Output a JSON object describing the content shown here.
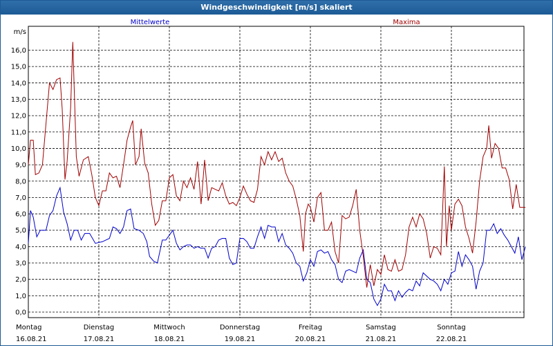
{
  "window": {
    "title": "Windgeschwindigkeit [m/s] skaliert"
  },
  "chart_data": {
    "type": "line",
    "ylabel": "m/s",
    "ylim": [
      0,
      17
    ],
    "yticks": [
      "0,0",
      "1,0",
      "2,0",
      "3,0",
      "4,0",
      "5,0",
      "6,0",
      "7,0",
      "8,0",
      "9,0",
      "10,0",
      "11,0",
      "12,0",
      "13,0",
      "14,0",
      "15,0",
      "16,0"
    ],
    "xlim": [
      0,
      7.05
    ],
    "days": [
      {
        "name": "Montag",
        "date": "16.08.21"
      },
      {
        "name": "Dienstag",
        "date": "17.08.21"
      },
      {
        "name": "Mittwoch",
        "date": "18.08.21"
      },
      {
        "name": "Donnerstag",
        "date": "19.08.21"
      },
      {
        "name": "Freitag",
        "date": "20.08.21"
      },
      {
        "name": "Samstag",
        "date": "21.08.21"
      },
      {
        "name": "Sonntag",
        "date": "22.08.21"
      }
    ],
    "grid": true,
    "series": [
      {
        "name": "Mittelwerte",
        "color": "#0000cc",
        "points": [
          [
            0.0,
            4.2
          ],
          [
            0.03,
            6.2
          ],
          [
            0.07,
            5.8
          ],
          [
            0.12,
            4.6
          ],
          [
            0.17,
            5.0
          ],
          [
            0.25,
            5.0
          ],
          [
            0.3,
            5.9
          ],
          [
            0.35,
            6.2
          ],
          [
            0.4,
            7.1
          ],
          [
            0.45,
            7.6
          ],
          [
            0.5,
            6.1
          ],
          [
            0.55,
            5.4
          ],
          [
            0.6,
            4.4
          ],
          [
            0.65,
            5.0
          ],
          [
            0.7,
            5.0
          ],
          [
            0.75,
            4.4
          ],
          [
            0.8,
            4.8
          ],
          [
            0.87,
            4.8
          ],
          [
            0.95,
            4.2
          ],
          [
            1.05,
            4.3
          ],
          [
            1.15,
            4.5
          ],
          [
            1.2,
            5.2
          ],
          [
            1.25,
            5.1
          ],
          [
            1.3,
            4.8
          ],
          [
            1.35,
            5.2
          ],
          [
            1.4,
            6.2
          ],
          [
            1.45,
            6.3
          ],
          [
            1.5,
            5.1
          ],
          [
            1.57,
            5.0
          ],
          [
            1.63,
            4.8
          ],
          [
            1.68,
            4.3
          ],
          [
            1.72,
            3.4
          ],
          [
            1.78,
            3.1
          ],
          [
            1.83,
            3.0
          ],
          [
            1.9,
            4.4
          ],
          [
            1.95,
            4.4
          ],
          [
            2.0,
            4.7
          ],
          [
            2.05,
            5.0
          ],
          [
            2.1,
            4.2
          ],
          [
            2.15,
            3.8
          ],
          [
            2.2,
            4.0
          ],
          [
            2.25,
            4.1
          ],
          [
            2.3,
            4.1
          ],
          [
            2.35,
            3.9
          ],
          [
            2.4,
            4.0
          ],
          [
            2.45,
            3.9
          ],
          [
            2.5,
            3.9
          ],
          [
            2.55,
            3.3
          ],
          [
            2.6,
            3.9
          ],
          [
            2.65,
            4.0
          ],
          [
            2.7,
            4.4
          ],
          [
            2.75,
            4.5
          ],
          [
            2.8,
            4.5
          ],
          [
            2.85,
            3.3
          ],
          [
            2.9,
            2.9
          ],
          [
            2.95,
            3.0
          ],
          [
            3.0,
            4.5
          ],
          [
            3.05,
            4.5
          ],
          [
            3.1,
            4.3
          ],
          [
            3.15,
            3.9
          ],
          [
            3.2,
            3.9
          ],
          [
            3.25,
            4.6
          ],
          [
            3.3,
            5.2
          ],
          [
            3.35,
            4.5
          ],
          [
            3.4,
            5.3
          ],
          [
            3.45,
            5.2
          ],
          [
            3.5,
            5.2
          ],
          [
            3.55,
            4.3
          ],
          [
            3.6,
            4.8
          ],
          [
            3.65,
            4.1
          ],
          [
            3.7,
            3.9
          ],
          [
            3.75,
            3.6
          ],
          [
            3.8,
            3.0
          ],
          [
            3.85,
            2.8
          ],
          [
            3.9,
            1.9
          ],
          [
            3.95,
            2.4
          ],
          [
            4.0,
            3.2
          ],
          [
            4.05,
            2.8
          ],
          [
            4.1,
            3.7
          ],
          [
            4.15,
            3.8
          ],
          [
            4.2,
            3.6
          ],
          [
            4.25,
            3.7
          ],
          [
            4.3,
            3.2
          ],
          [
            4.35,
            2.9
          ],
          [
            4.4,
            2.0
          ],
          [
            4.45,
            1.8
          ],
          [
            4.5,
            2.5
          ],
          [
            4.55,
            2.6
          ],
          [
            4.6,
            2.5
          ],
          [
            4.65,
            2.4
          ],
          [
            4.7,
            3.3
          ],
          [
            4.75,
            3.8
          ],
          [
            4.8,
            2.0
          ],
          [
            4.85,
            1.8
          ],
          [
            4.9,
            0.8
          ],
          [
            4.95,
            0.4
          ],
          [
            5.0,
            0.8
          ],
          [
            5.05,
            1.7
          ],
          [
            5.1,
            1.3
          ],
          [
            5.15,
            1.3
          ],
          [
            5.2,
            0.7
          ],
          [
            5.25,
            1.3
          ],
          [
            5.3,
            0.9
          ],
          [
            5.35,
            1.2
          ],
          [
            5.4,
            1.4
          ],
          [
            5.45,
            1.3
          ],
          [
            5.5,
            1.9
          ],
          [
            5.55,
            1.6
          ],
          [
            5.6,
            2.4
          ],
          [
            5.65,
            2.2
          ],
          [
            5.7,
            2.0
          ],
          [
            5.75,
            1.9
          ],
          [
            5.8,
            1.7
          ],
          [
            5.85,
            1.3
          ],
          [
            5.9,
            2.0
          ],
          [
            5.95,
            1.7
          ],
          [
            6.0,
            2.4
          ],
          [
            6.05,
            2.5
          ],
          [
            6.1,
            3.7
          ],
          [
            6.15,
            2.8
          ],
          [
            6.2,
            3.5
          ],
          [
            6.25,
            3.2
          ],
          [
            6.3,
            2.8
          ],
          [
            6.35,
            1.4
          ],
          [
            6.4,
            2.5
          ],
          [
            6.45,
            3.0
          ],
          [
            6.5,
            5.0
          ],
          [
            6.55,
            5.0
          ],
          [
            6.6,
            5.4
          ],
          [
            6.65,
            4.8
          ],
          [
            6.7,
            5.1
          ],
          [
            6.75,
            4.7
          ],
          [
            6.8,
            4.4
          ],
          [
            6.85,
            4.0
          ],
          [
            6.9,
            3.6
          ],
          [
            6.95,
            4.6
          ],
          [
            7.0,
            3.2
          ],
          [
            7.05,
            4.0
          ]
        ]
      },
      {
        "name": "Maxima",
        "color": "#a00000",
        "points": [
          [
            0.0,
            9.0
          ],
          [
            0.03,
            10.5
          ],
          [
            0.07,
            10.5
          ],
          [
            0.1,
            8.4
          ],
          [
            0.15,
            8.5
          ],
          [
            0.2,
            9.0
          ],
          [
            0.25,
            11.5
          ],
          [
            0.3,
            14.0
          ],
          [
            0.35,
            13.6
          ],
          [
            0.4,
            14.2
          ],
          [
            0.45,
            14.3
          ],
          [
            0.48,
            12.4
          ],
          [
            0.52,
            8.1
          ],
          [
            0.55,
            9.2
          ],
          [
            0.6,
            12.5
          ],
          [
            0.63,
            16.5
          ],
          [
            0.68,
            9.5
          ],
          [
            0.72,
            8.3
          ],
          [
            0.78,
            9.3
          ],
          [
            0.85,
            9.5
          ],
          [
            0.9,
            8.4
          ],
          [
            0.95,
            7.0
          ],
          [
            1.0,
            6.5
          ],
          [
            1.05,
            7.4
          ],
          [
            1.1,
            7.4
          ],
          [
            1.15,
            8.5
          ],
          [
            1.2,
            8.2
          ],
          [
            1.25,
            8.3
          ],
          [
            1.3,
            7.6
          ],
          [
            1.35,
            9.0
          ],
          [
            1.4,
            10.5
          ],
          [
            1.45,
            11.3
          ],
          [
            1.48,
            11.7
          ],
          [
            1.52,
            9.0
          ],
          [
            1.57,
            9.5
          ],
          [
            1.6,
            11.2
          ],
          [
            1.65,
            9.1
          ],
          [
            1.7,
            8.5
          ],
          [
            1.75,
            6.6
          ],
          [
            1.8,
            5.3
          ],
          [
            1.85,
            5.6
          ],
          [
            1.9,
            6.8
          ],
          [
            1.95,
            6.8
          ],
          [
            2.0,
            8.2
          ],
          [
            2.05,
            8.4
          ],
          [
            2.1,
            7.1
          ],
          [
            2.15,
            6.8
          ],
          [
            2.2,
            8.0
          ],
          [
            2.25,
            7.6
          ],
          [
            2.3,
            8.2
          ],
          [
            2.35,
            7.5
          ],
          [
            2.4,
            9.2
          ],
          [
            2.45,
            6.6
          ],
          [
            2.5,
            9.3
          ],
          [
            2.55,
            6.8
          ],
          [
            2.6,
            7.6
          ],
          [
            2.65,
            7.5
          ],
          [
            2.7,
            7.4
          ],
          [
            2.75,
            7.9
          ],
          [
            2.8,
            7.1
          ],
          [
            2.85,
            6.6
          ],
          [
            2.9,
            6.7
          ],
          [
            2.95,
            6.5
          ],
          [
            3.0,
            7.0
          ],
          [
            3.05,
            7.7
          ],
          [
            3.1,
            7.2
          ],
          [
            3.15,
            6.8
          ],
          [
            3.2,
            6.7
          ],
          [
            3.25,
            7.5
          ],
          [
            3.3,
            9.5
          ],
          [
            3.35,
            9.0
          ],
          [
            3.4,
            9.8
          ],
          [
            3.45,
            9.3
          ],
          [
            3.5,
            9.8
          ],
          [
            3.55,
            9.2
          ],
          [
            3.6,
            9.4
          ],
          [
            3.65,
            8.5
          ],
          [
            3.7,
            8.0
          ],
          [
            3.75,
            7.7
          ],
          [
            3.8,
            6.9
          ],
          [
            3.85,
            5.9
          ],
          [
            3.9,
            3.7
          ],
          [
            3.93,
            6.0
          ],
          [
            3.97,
            6.6
          ],
          [
            4.0,
            6.4
          ],
          [
            4.05,
            5.5
          ],
          [
            4.1,
            7.0
          ],
          [
            4.15,
            7.3
          ],
          [
            4.2,
            5.0
          ],
          [
            4.25,
            5.0
          ],
          [
            4.3,
            5.5
          ],
          [
            4.35,
            3.7
          ],
          [
            4.4,
            3.0
          ],
          [
            4.45,
            5.9
          ],
          [
            4.5,
            5.7
          ],
          [
            4.55,
            5.8
          ],
          [
            4.6,
            6.5
          ],
          [
            4.65,
            7.5
          ],
          [
            4.7,
            5.0
          ],
          [
            4.75,
            3.4
          ],
          [
            4.8,
            1.5
          ],
          [
            4.85,
            2.9
          ],
          [
            4.9,
            1.6
          ],
          [
            4.95,
            2.6
          ],
          [
            5.0,
            2.3
          ],
          [
            5.05,
            3.5
          ],
          [
            5.1,
            2.6
          ],
          [
            5.15,
            2.5
          ],
          [
            5.2,
            3.2
          ],
          [
            5.25,
            2.5
          ],
          [
            5.3,
            2.6
          ],
          [
            5.35,
            3.5
          ],
          [
            5.4,
            5.2
          ],
          [
            5.45,
            5.8
          ],
          [
            5.5,
            5.2
          ],
          [
            5.55,
            6.0
          ],
          [
            5.6,
            5.7
          ],
          [
            5.65,
            4.8
          ],
          [
            5.7,
            3.3
          ],
          [
            5.75,
            4.0
          ],
          [
            5.8,
            3.9
          ],
          [
            5.85,
            3.5
          ],
          [
            5.9,
            8.9
          ],
          [
            5.93,
            4.0
          ],
          [
            5.97,
            6.5
          ],
          [
            6.0,
            5.0
          ],
          [
            6.05,
            6.6
          ],
          [
            6.1,
            6.9
          ],
          [
            6.15,
            6.5
          ],
          [
            6.2,
            5.2
          ],
          [
            6.25,
            4.5
          ],
          [
            6.3,
            3.6
          ],
          [
            6.35,
            5.5
          ],
          [
            6.4,
            8.0
          ],
          [
            6.45,
            9.5
          ],
          [
            6.5,
            10.0
          ],
          [
            6.53,
            11.4
          ],
          [
            6.57,
            9.4
          ],
          [
            6.62,
            10.3
          ],
          [
            6.67,
            10.0
          ],
          [
            6.72,
            8.8
          ],
          [
            6.77,
            8.8
          ],
          [
            6.82,
            8.1
          ],
          [
            6.87,
            6.3
          ],
          [
            6.92,
            7.8
          ],
          [
            6.97,
            6.4
          ],
          [
            7.05,
            6.4
          ]
        ]
      }
    ]
  }
}
